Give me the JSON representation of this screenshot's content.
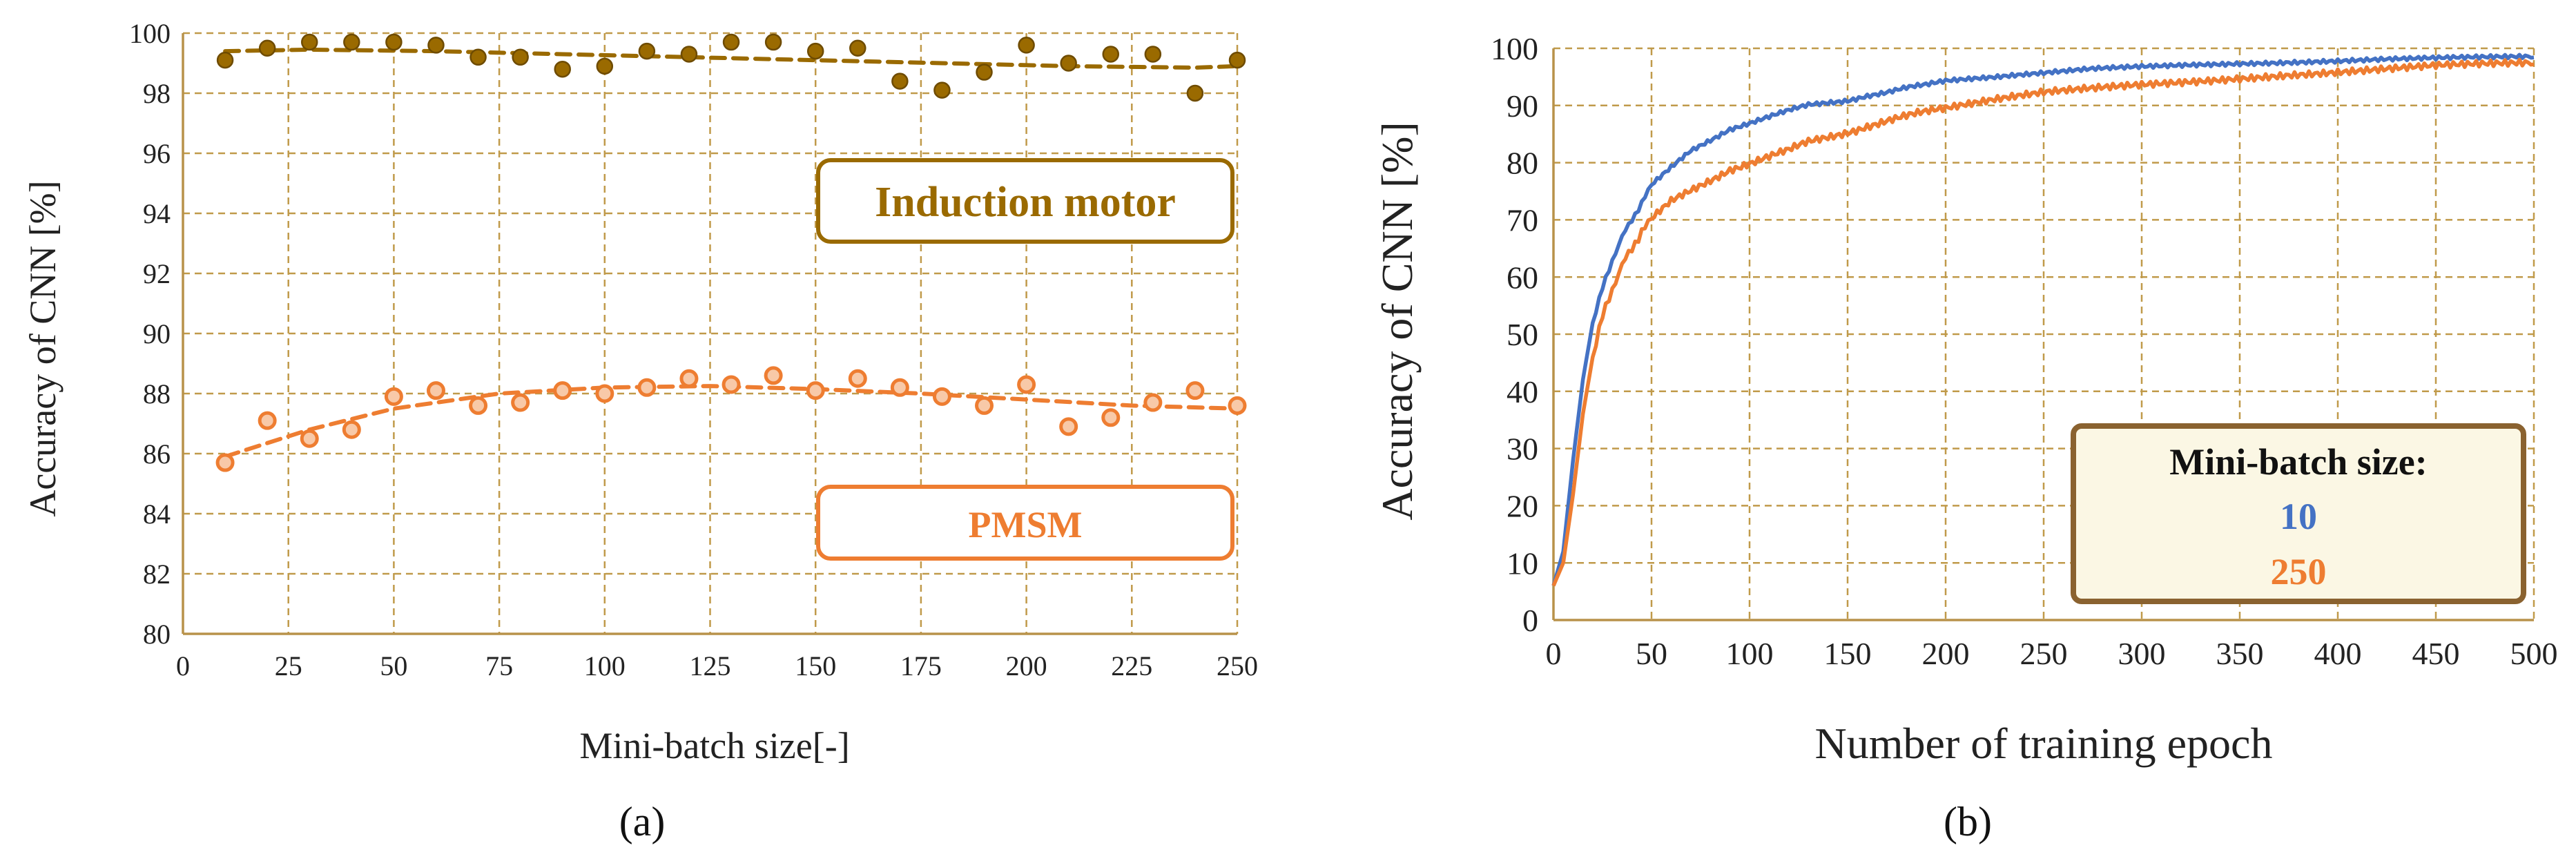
{
  "colors": {
    "im": "#9A6A00",
    "pmsm": "#EE7D31",
    "blue": "#4472C4",
    "grid": "#C09A4A",
    "legend_fill": "#FBF7E4",
    "legend_border": "#8A6230"
  },
  "captions": {
    "a": "(a)",
    "b": "(b)"
  },
  "chart_data": [
    {
      "type": "scatter",
      "xlabel": "Mini-batch size[-]",
      "ylabel": "Accuracy of CNN [%]",
      "xlim": [
        0,
        250
      ],
      "ylim": [
        80,
        100
      ],
      "xticks": [
        0,
        25,
        50,
        75,
        100,
        125,
        150,
        175,
        200,
        225,
        250
      ],
      "yticks": [
        80,
        82,
        84,
        86,
        88,
        90,
        92,
        94,
        96,
        98,
        100
      ],
      "grid": true,
      "series": [
        {
          "name": "Induction motor",
          "marker": "filled-circle",
          "color": "#9A6A00",
          "x": [
            10,
            20,
            30,
            40,
            50,
            60,
            70,
            80,
            90,
            100,
            110,
            120,
            130,
            140,
            150,
            160,
            170,
            180,
            190,
            200,
            210,
            220,
            230,
            240,
            250
          ],
          "y": [
            99.1,
            99.5,
            99.7,
            99.7,
            99.7,
            99.6,
            99.2,
            99.2,
            98.8,
            98.9,
            99.4,
            99.3,
            99.7,
            99.7,
            99.4,
            99.5,
            98.4,
            98.1,
            98.7,
            99.6,
            99.0,
            99.3,
            99.3,
            98.0,
            99.1
          ],
          "trend_x": [
            10,
            30,
            60,
            90,
            120,
            150,
            180,
            210,
            240,
            250
          ],
          "trend_y": [
            99.4,
            99.45,
            99.4,
            99.3,
            99.2,
            99.1,
            99.0,
            98.9,
            98.85,
            98.9
          ]
        },
        {
          "name": "PMSM",
          "marker": "open-circle",
          "color": "#EE7D31",
          "x": [
            10,
            20,
            30,
            40,
            50,
            60,
            70,
            80,
            90,
            100,
            110,
            120,
            130,
            140,
            150,
            160,
            170,
            180,
            190,
            200,
            210,
            220,
            230,
            240,
            250
          ],
          "y": [
            85.7,
            87.1,
            86.5,
            86.8,
            87.9,
            88.1,
            87.6,
            87.7,
            88.1,
            88.0,
            88.2,
            88.5,
            88.3,
            88.6,
            88.1,
            88.5,
            88.2,
            87.9,
            87.6,
            88.3,
            86.9,
            87.2,
            87.7,
            88.1,
            87.6
          ],
          "trend_x": [
            10,
            30,
            50,
            75,
            100,
            125,
            150,
            175,
            200,
            225,
            250
          ],
          "trend_y": [
            85.9,
            86.8,
            87.5,
            88.0,
            88.2,
            88.25,
            88.15,
            88.0,
            87.8,
            87.6,
            87.5
          ]
        }
      ],
      "legend_boxes": [
        "Induction motor",
        "PMSM"
      ]
    },
    {
      "type": "line",
      "xlabel": "Number of training epoch",
      "ylabel": "Accuracy of CNN [%]",
      "xlim": [
        0,
        500
      ],
      "ylim": [
        0,
        100
      ],
      "xticks": [
        0,
        50,
        100,
        150,
        200,
        250,
        300,
        350,
        400,
        450,
        500
      ],
      "yticks": [
        0,
        10,
        20,
        30,
        40,
        50,
        60,
        70,
        80,
        90,
        100
      ],
      "grid": true,
      "legend": {
        "title": "Mini-batch size:",
        "position": "lower-right",
        "entries": [
          "10",
          "250"
        ]
      },
      "series": [
        {
          "name": "10",
          "color": "#4472C4",
          "x": [
            0,
            5,
            10,
            15,
            20,
            25,
            30,
            35,
            40,
            45,
            50,
            60,
            70,
            80,
            90,
            100,
            110,
            120,
            130,
            140,
            150,
            160,
            170,
            180,
            190,
            200,
            225,
            250,
            275,
            300,
            325,
            350,
            375,
            400,
            425,
            450,
            475,
            500
          ],
          "y": [
            6,
            12,
            28,
            42,
            52,
            58,
            63,
            67,
            70,
            73,
            76,
            79,
            82,
            84,
            86,
            87,
            88,
            89,
            90,
            90.5,
            91,
            91.8,
            92.3,
            93,
            93.5,
            94.3,
            94.8,
            95.5,
            96.3,
            96.8,
            97.2,
            97.5,
            97.7,
            97.9,
            98.1,
            98.2,
            98.3,
            98.4
          ]
        },
        {
          "name": "250",
          "color": "#EE7D31",
          "x": [
            0,
            5,
            10,
            15,
            20,
            25,
            30,
            35,
            40,
            45,
            50,
            60,
            70,
            80,
            90,
            100,
            110,
            120,
            130,
            140,
            150,
            160,
            170,
            180,
            190,
            200,
            225,
            250,
            275,
            300,
            325,
            350,
            375,
            400,
            425,
            450,
            475,
            500
          ],
          "y": [
            6,
            10,
            22,
            36,
            46,
            53,
            58,
            62,
            65,
            68,
            70,
            73,
            75,
            77,
            79,
            80,
            81,
            82,
            83.5,
            84.5,
            85.5,
            86.5,
            87.3,
            88,
            88.7,
            89.5,
            90.8,
            92,
            92.8,
            93.6,
            94.3,
            95,
            95.6,
            96,
            96.4,
            96.8,
            97,
            97.2
          ]
        }
      ]
    }
  ]
}
